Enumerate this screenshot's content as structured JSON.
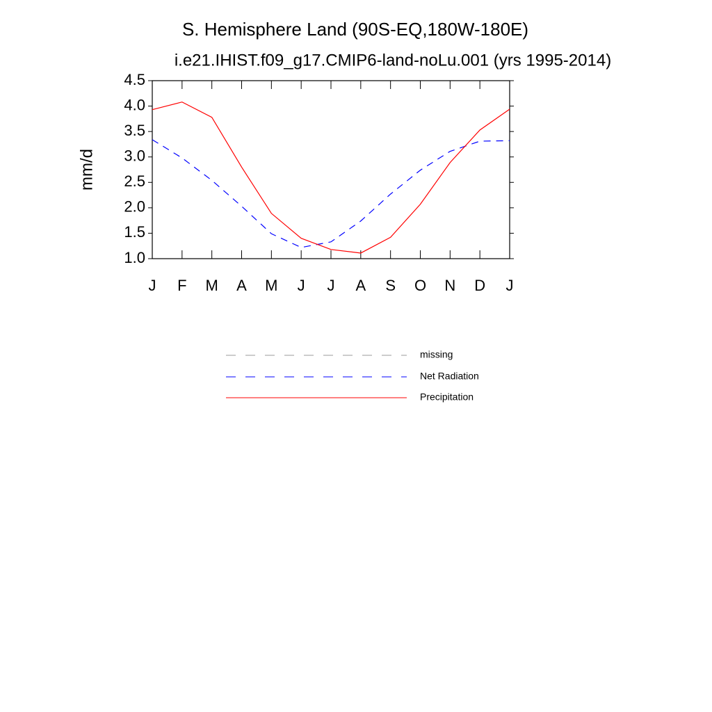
{
  "chart_data": {
    "type": "line",
    "title": "S. Hemisphere Land (90S-EQ,180W-180E)",
    "subtitle": "i.e21.IHIST.f09_g17.CMIP6-land-noLu.001 (yrs 1995-2014)",
    "y_label": "mm/d",
    "categories": [
      "J",
      "F",
      "M",
      "A",
      "M",
      "J",
      "J",
      "A",
      "S",
      "O",
      "N",
      "D",
      "J"
    ],
    "series": [
      {
        "name": "missing",
        "color": "#999999",
        "dash": true,
        "values": [
          null,
          null,
          null,
          null,
          null,
          null,
          null,
          null,
          null,
          null,
          null,
          null,
          null
        ]
      },
      {
        "name": "Net Radiation",
        "color": "#0000ff",
        "dash": true,
        "values": [
          3.34,
          2.98,
          2.54,
          2.03,
          1.49,
          1.22,
          1.33,
          1.74,
          2.27,
          2.74,
          3.11,
          3.31,
          3.32
        ]
      },
      {
        "name": "Precipitation",
        "color": "#ff0000",
        "dash": false,
        "values": [
          3.93,
          4.08,
          3.78,
          2.8,
          1.89,
          1.4,
          1.18,
          1.11,
          1.42,
          2.07,
          2.89,
          3.53,
          3.94
        ]
      }
    ],
    "ylim": [
      1.0,
      4.5
    ],
    "yticks": [
      {
        "value": 1.0,
        "label": "1.0"
      },
      1.5,
      {
        "value": 2.0,
        "label": "2.0"
      },
      2.5,
      {
        "value": 3.0,
        "label": "3.0"
      },
      3.5,
      {
        "value": 4.0,
        "label": "4.0"
      },
      4.5
    ],
    "grid": false
  }
}
